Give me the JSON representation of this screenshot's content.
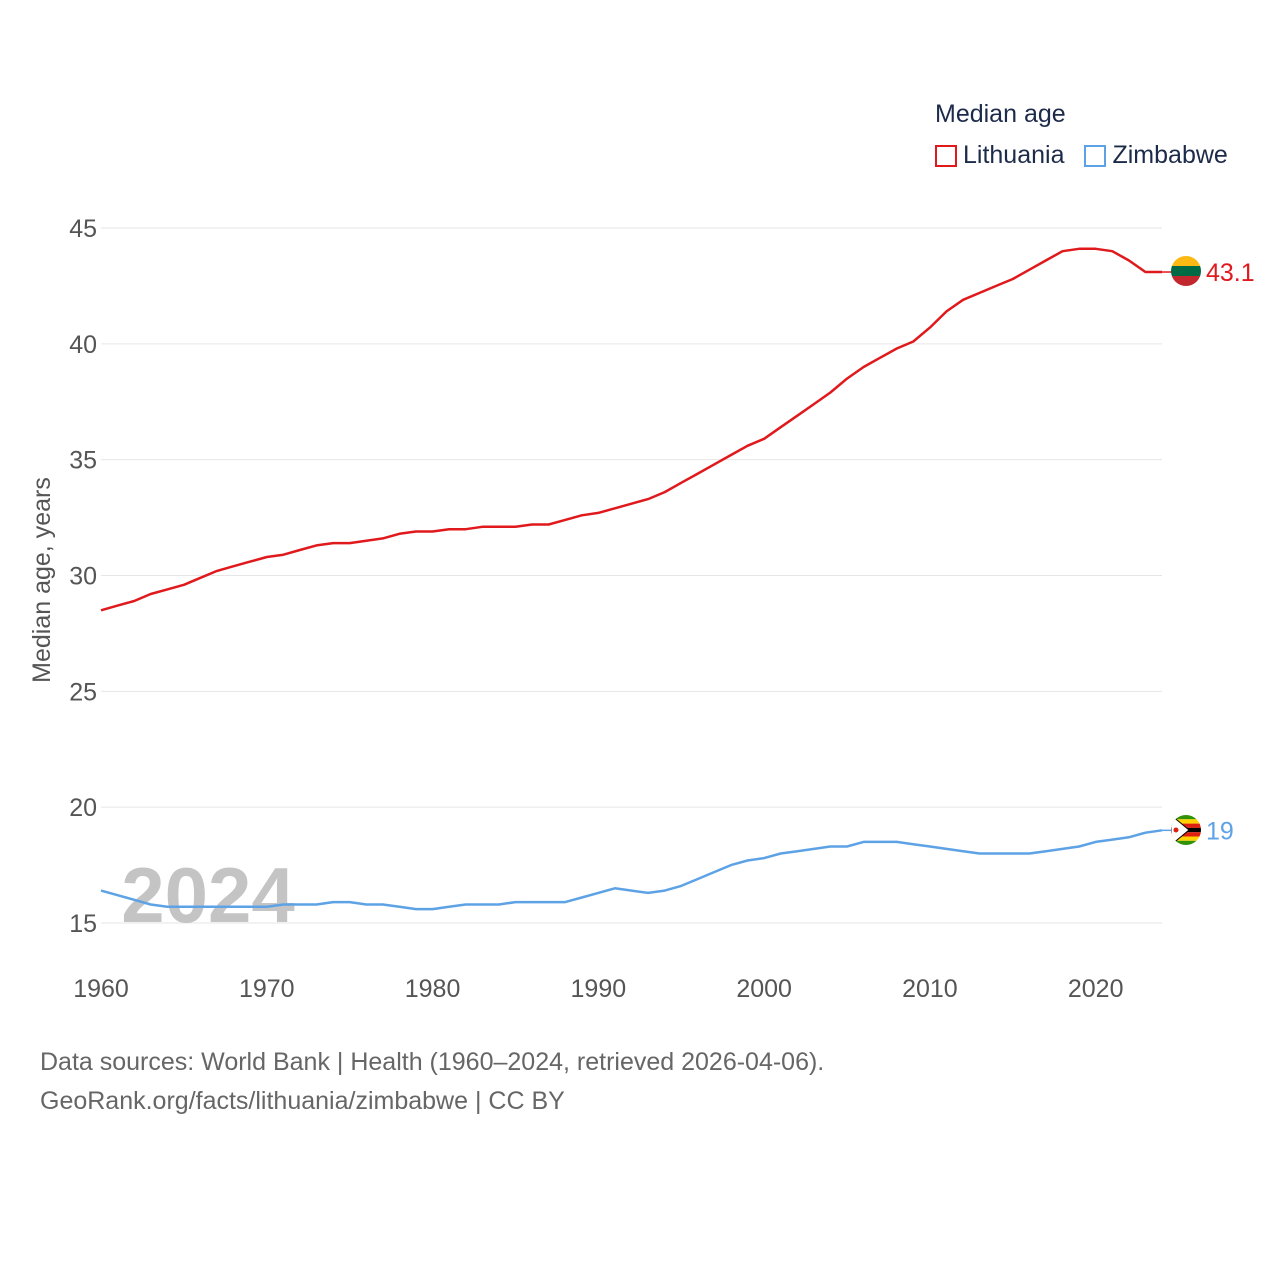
{
  "legend": {
    "title": "Median age",
    "items": [
      {
        "label": "Lithuania",
        "color": "#e0191d"
      },
      {
        "label": "Zimbabwe",
        "color": "#5ea2e6"
      }
    ]
  },
  "footer": {
    "line1": "Data sources: World Bank | Health (1960–2024, retrieved 2026-04-06).",
    "line2": "GeoRank.org/facts/lithuania/zimbabwe | CC BY"
  },
  "chart_data": {
    "type": "line",
    "title": "Median age",
    "ylabel": "Median age, years",
    "xlabel": "",
    "year_label": "2024",
    "xlim": [
      1960,
      2024
    ],
    "ylim": [
      13,
      46
    ],
    "yticks": [
      15,
      20,
      25,
      30,
      35,
      40,
      45
    ],
    "xticks": [
      1960,
      1970,
      1980,
      1990,
      2000,
      2010,
      2020
    ],
    "x": [
      1960,
      1961,
      1962,
      1963,
      1964,
      1965,
      1966,
      1967,
      1968,
      1969,
      1970,
      1971,
      1972,
      1973,
      1974,
      1975,
      1976,
      1977,
      1978,
      1979,
      1980,
      1981,
      1982,
      1983,
      1984,
      1985,
      1986,
      1987,
      1988,
      1989,
      1990,
      1991,
      1992,
      1993,
      1994,
      1995,
      1996,
      1997,
      1998,
      1999,
      2000,
      2001,
      2002,
      2003,
      2004,
      2005,
      2006,
      2007,
      2008,
      2009,
      2010,
      2011,
      2012,
      2013,
      2014,
      2015,
      2016,
      2017,
      2018,
      2019,
      2020,
      2021,
      2022,
      2023,
      2024
    ],
    "series": [
      {
        "name": "Lithuania",
        "color": "#e0191d",
        "end_label": "43.1",
        "flag": "lithuania-flag",
        "values": [
          28.5,
          28.7,
          28.9,
          29.2,
          29.4,
          29.6,
          29.9,
          30.2,
          30.4,
          30.6,
          30.8,
          30.9,
          31.1,
          31.3,
          31.4,
          31.4,
          31.5,
          31.6,
          31.8,
          31.9,
          31.9,
          32.0,
          32.0,
          32.1,
          32.1,
          32.1,
          32.2,
          32.2,
          32.4,
          32.6,
          32.7,
          32.9,
          33.1,
          33.3,
          33.6,
          34.0,
          34.4,
          34.8,
          35.2,
          35.6,
          35.9,
          36.4,
          36.9,
          37.4,
          37.9,
          38.5,
          39.0,
          39.4,
          39.8,
          40.1,
          40.7,
          41.4,
          41.9,
          42.2,
          42.5,
          42.8,
          43.2,
          43.6,
          44.0,
          44.1,
          44.1,
          44.0,
          43.6,
          43.1,
          43.1
        ]
      },
      {
        "name": "Zimbabwe",
        "color": "#5ea2e6",
        "end_label": "19",
        "flag": "zimbabwe-flag",
        "values": [
          16.4,
          16.2,
          16.0,
          15.8,
          15.7,
          15.7,
          15.7,
          15.7,
          15.7,
          15.7,
          15.7,
          15.8,
          15.8,
          15.8,
          15.9,
          15.9,
          15.8,
          15.8,
          15.7,
          15.6,
          15.6,
          15.7,
          15.8,
          15.8,
          15.8,
          15.9,
          15.9,
          15.9,
          15.9,
          16.1,
          16.3,
          16.5,
          16.4,
          16.3,
          16.4,
          16.6,
          16.9,
          17.2,
          17.5,
          17.7,
          17.8,
          18.0,
          18.1,
          18.2,
          18.3,
          18.3,
          18.5,
          18.5,
          18.5,
          18.4,
          18.3,
          18.2,
          18.1,
          18.0,
          18.0,
          18.0,
          18.0,
          18.1,
          18.2,
          18.3,
          18.5,
          18.6,
          18.7,
          18.9,
          19.0
        ]
      }
    ]
  }
}
